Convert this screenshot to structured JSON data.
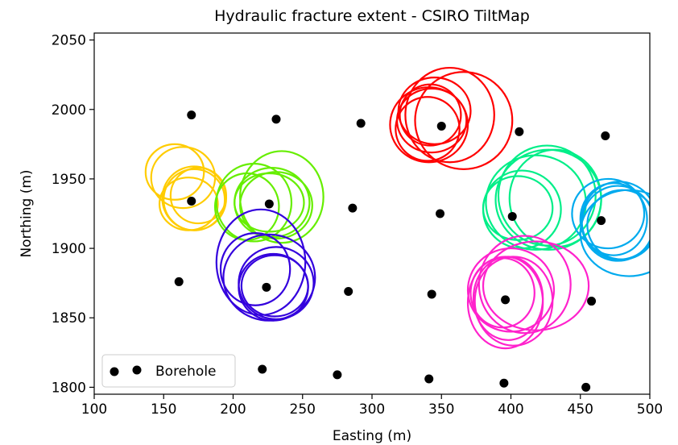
{
  "chart_data": {
    "type": "scatter",
    "title": "Hydraulic fracture extent - CSIRO TiltMap",
    "xlabel": "Easting (m)",
    "ylabel": "Northing (m)",
    "xlim": [
      100,
      500
    ],
    "ylim": [
      1795,
      2055
    ],
    "xticks": [
      100,
      150,
      200,
      250,
      300,
      350,
      400,
      450,
      500
    ],
    "yticks": [
      1800,
      1850,
      1900,
      1950,
      2000,
      2050
    ],
    "xtick_labels": [
      "100",
      "150",
      "200",
      "250",
      "300",
      "350",
      "400",
      "450",
      "500"
    ],
    "ytick_labels": [
      "1800",
      "1850",
      "1900",
      "1950",
      "2000",
      "2050"
    ],
    "grid": false,
    "legend": {
      "position": "bottom-left",
      "label": "Borehole"
    },
    "series": [
      {
        "name": "Borehole",
        "color": "#000000",
        "x": [
          170,
          231,
          292,
          350,
          406,
          468,
          170,
          226,
          286,
          349,
          401,
          465,
          161,
          224,
          283,
          343,
          396,
          458,
          221,
          275,
          341,
          395,
          454
        ],
        "y": [
          1996,
          1993,
          1990,
          1988,
          1984,
          1981,
          1934,
          1932,
          1929,
          1925,
          1923,
          1920,
          1876,
          1872,
          1869,
          1867,
          1863,
          1862,
          1813,
          1809,
          1806,
          1803,
          1800
        ]
      }
    ],
    "fracture_ellipses": [
      {
        "color": "#ffcc00",
        "ellipses": [
          {
            "cx": 158,
            "cy": 1955,
            "rx": 21,
            "ry": 20
          },
          {
            "cx": 164,
            "cy": 1951,
            "rx": 23,
            "ry": 22
          },
          {
            "cx": 172,
            "cy": 1935,
            "rx": 22,
            "ry": 22
          },
          {
            "cx": 172,
            "cy": 1936,
            "rx": 23,
            "ry": 23
          },
          {
            "cx": 168,
            "cy": 1932,
            "rx": 21,
            "ry": 19
          },
          {
            "cx": 175,
            "cy": 1938,
            "rx": 20,
            "ry": 20
          }
        ]
      },
      {
        "color": "#66ee00",
        "ellipses": [
          {
            "cx": 210,
            "cy": 1930,
            "rx": 23,
            "ry": 24
          },
          {
            "cx": 215,
            "cy": 1933,
            "rx": 27,
            "ry": 28
          },
          {
            "cx": 235,
            "cy": 1937,
            "rx": 30,
            "ry": 33
          },
          {
            "cx": 228,
            "cy": 1933,
            "rx": 27,
            "ry": 25
          },
          {
            "cx": 231,
            "cy": 1931,
            "rx": 26,
            "ry": 24
          },
          {
            "cx": 226,
            "cy": 1933,
            "rx": 25,
            "ry": 21
          }
        ]
      },
      {
        "color": "#3300dd",
        "ellipses": [
          {
            "cx": 216,
            "cy": 1885,
            "rx": 25,
            "ry": 26
          },
          {
            "cx": 220,
            "cy": 1890,
            "rx": 32,
            "ry": 38
          },
          {
            "cx": 226,
            "cy": 1879,
            "rx": 33,
            "ry": 31
          },
          {
            "cx": 231,
            "cy": 1875,
            "rx": 27,
            "ry": 26
          },
          {
            "cx": 229,
            "cy": 1872,
            "rx": 25,
            "ry": 24
          },
          {
            "cx": 230,
            "cy": 1873,
            "rx": 24,
            "ry": 22
          }
        ]
      },
      {
        "color": "#ff0000",
        "ellipses": [
          {
            "cx": 341,
            "cy": 1989,
            "rx": 28,
            "ry": 27
          },
          {
            "cx": 343,
            "cy": 1992,
            "rx": 25,
            "ry": 23
          },
          {
            "cx": 340,
            "cy": 1986,
            "rx": 23,
            "ry": 23
          },
          {
            "cx": 345,
            "cy": 1999,
            "rx": 26,
            "ry": 24
          },
          {
            "cx": 356,
            "cy": 1996,
            "rx": 32,
            "ry": 34
          },
          {
            "cx": 366,
            "cy": 1992,
            "rx": 35,
            "ry": 35
          },
          {
            "cx": 342,
            "cy": 1996,
            "rx": 22,
            "ry": 22
          }
        ]
      },
      {
        "color": "#00ee88",
        "ellipses": [
          {
            "cx": 405,
            "cy": 1929,
            "rx": 25,
            "ry": 23
          },
          {
            "cx": 408,
            "cy": 1928,
            "rx": 28,
            "ry": 28
          },
          {
            "cx": 418,
            "cy": 1933,
            "rx": 36,
            "ry": 34
          },
          {
            "cx": 426,
            "cy": 1938,
            "rx": 35,
            "ry": 36
          },
          {
            "cx": 432,
            "cy": 1936,
            "rx": 33,
            "ry": 35
          },
          {
            "cx": 427,
            "cy": 1935,
            "rx": 38,
            "ry": 36
          }
        ]
      },
      {
        "color": "#00aaee",
        "ellipses": [
          {
            "cx": 470,
            "cy": 1925,
            "rx": 26,
            "ry": 25
          },
          {
            "cx": 474,
            "cy": 1921,
            "rx": 24,
            "ry": 26
          },
          {
            "cx": 480,
            "cy": 1917,
            "rx": 25,
            "ry": 25
          },
          {
            "cx": 478,
            "cy": 1920,
            "rx": 27,
            "ry": 28
          },
          {
            "cx": 477,
            "cy": 1918,
            "rx": 26,
            "ry": 27
          },
          {
            "cx": 485,
            "cy": 1911,
            "rx": 35,
            "ry": 31
          }
        ]
      },
      {
        "color": "#ff22cc",
        "ellipses": [
          {
            "cx": 394,
            "cy": 1868,
            "rx": 23,
            "ry": 25
          },
          {
            "cx": 398,
            "cy": 1864,
            "rx": 25,
            "ry": 30
          },
          {
            "cx": 396,
            "cy": 1861,
            "rx": 27,
            "ry": 33
          },
          {
            "cx": 400,
            "cy": 1870,
            "rx": 31,
            "ry": 30
          },
          {
            "cx": 410,
            "cy": 1874,
            "rx": 33,
            "ry": 35
          },
          {
            "cx": 418,
            "cy": 1873,
            "rx": 38,
            "ry": 32
          },
          {
            "cx": 402,
            "cy": 1862,
            "rx": 28,
            "ry": 32
          }
        ]
      }
    ]
  }
}
